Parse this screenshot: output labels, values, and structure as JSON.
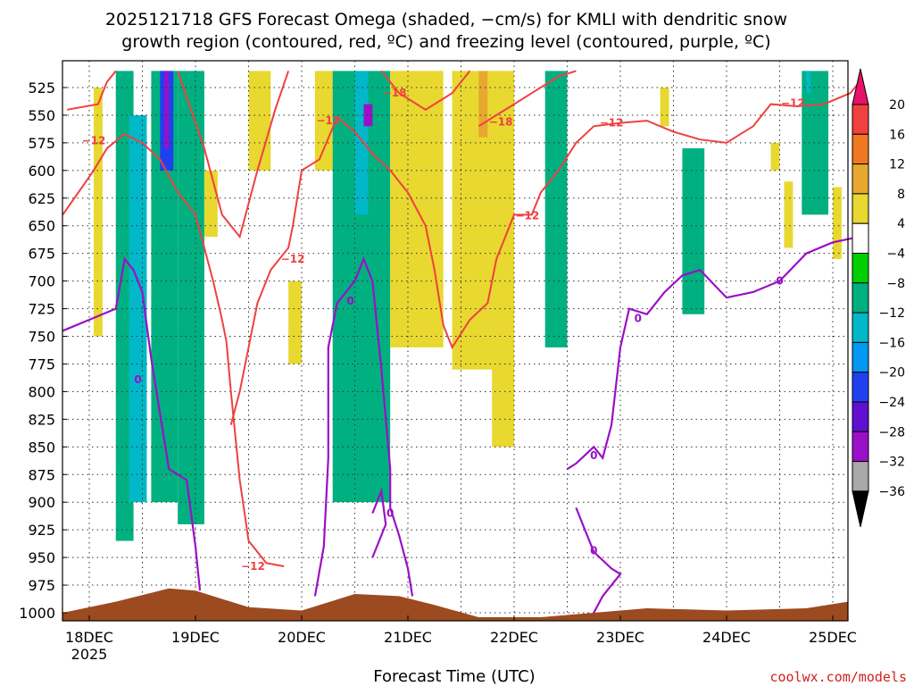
{
  "title_line1": "2025121718 GFS Forecast Omega (shaded, −cm/s) for KMLI with dendritic snow",
  "title_line2": "growth region (contoured, red, ºC) and freezing level (contoured, purple, ºC)",
  "xlabel": "Forecast Time (UTC)",
  "credit": "coolwx.com/models",
  "colors": {
    "terrain": "#9c4a20",
    "dgz_contour": "#f04040",
    "freezing_contour": "#9a10c8",
    "grid": "#333333"
  },
  "chart_data": {
    "type": "heatmap",
    "y_axis": {
      "unit": "hPa",
      "inverted": true,
      "range": [
        1005,
        510
      ],
      "ticks": [
        525,
        550,
        575,
        600,
        625,
        650,
        675,
        700,
        725,
        750,
        775,
        800,
        825,
        850,
        875,
        900,
        925,
        950,
        975,
        1000
      ]
    },
    "x_axis": {
      "range_hours_label": "Forecast Time (UTC)",
      "start": "2025-12-17T18Z",
      "end": "2025-12-25T06Z",
      "ticks": [
        {
          "time": "2025-12-18T00Z",
          "label": "18DEC",
          "sublabel": "2025"
        },
        {
          "time": "2025-12-19T00Z",
          "label": "19DEC"
        },
        {
          "time": "2025-12-20T00Z",
          "label": "20DEC"
        },
        {
          "time": "2025-12-21T00Z",
          "label": "21DEC"
        },
        {
          "time": "2025-12-22T00Z",
          "label": "22DEC"
        },
        {
          "time": "2025-12-23T00Z",
          "label": "23DEC"
        },
        {
          "time": "2025-12-24T00Z",
          "label": "24DEC"
        },
        {
          "time": "2025-12-25T00Z",
          "label": "25DEC"
        }
      ]
    },
    "grid": true,
    "colorbar": {
      "placement": "right",
      "labels": [
        "20",
        "16",
        "12",
        "8",
        "4",
        "−4",
        "−8",
        "−12",
        "−16",
        "−20",
        "−24",
        "−28",
        "−32",
        "−36"
      ],
      "colors_top_to_bottom": [
        "#e8106a",
        "#f04040",
        "#f07820",
        "#e8a830",
        "#e8d830",
        "#ffffff",
        "#00d000",
        "#00b080",
        "#00b8c8",
        "#0098f0",
        "#2040f0",
        "#6010d0",
        "#9a10c8",
        "#a8a8a8",
        "#000000"
      ]
    },
    "omega_shading": [
      {
        "t0": "18DEC 01Z",
        "t1": "18DEC 03Z",
        "p_top": 525,
        "p_bot": 750,
        "value": 6
      },
      {
        "t0": "18DEC 06Z",
        "t1": "18DEC 10Z",
        "p_top": 510,
        "p_bot": 935,
        "value": -8
      },
      {
        "t0": "18DEC 09Z",
        "t1": "18DEC 13Z",
        "p_top": 550,
        "p_bot": 900,
        "value": -12
      },
      {
        "t0": "18DEC 14Z",
        "t1": "18DEC 20Z",
        "p_top": 510,
        "p_bot": 900,
        "value": -8
      },
      {
        "t0": "18DEC 16Z",
        "t1": "18DEC 19Z",
        "p_top": 510,
        "p_bot": 600,
        "value": -20
      },
      {
        "t0": "18DEC 17Z",
        "t1": "18DEC 18Z",
        "p_top": 510,
        "p_bot": 580,
        "value": -28
      },
      {
        "t0": "18DEC 20Z",
        "t1": "19DEC 02Z",
        "p_top": 510,
        "p_bot": 920,
        "value": -8
      },
      {
        "t0": "19DEC 02Z",
        "t1": "19DEC 05Z",
        "p_top": 600,
        "p_bot": 660,
        "value": 6
      },
      {
        "t0": "19DEC 12Z",
        "t1": "19DEC 17Z",
        "p_top": 510,
        "p_bot": 600,
        "value": 6
      },
      {
        "t0": "19DEC 21Z",
        "t1": "20DEC 00Z",
        "p_top": 700,
        "p_bot": 775,
        "value": 6
      },
      {
        "t0": "20DEC 03Z",
        "t1": "20DEC 07Z",
        "p_top": 510,
        "p_bot": 600,
        "value": 6
      },
      {
        "t0": "20DEC 07Z",
        "t1": "20DEC 20Z",
        "p_top": 510,
        "p_bot": 900,
        "value": -8
      },
      {
        "t0": "20DEC 12Z",
        "t1": "20DEC 15Z",
        "p_top": 510,
        "p_bot": 640,
        "value": -12
      },
      {
        "t0": "20DEC 14Z",
        "t1": "20DEC 16Z",
        "p_top": 540,
        "p_bot": 560,
        "value": -28
      },
      {
        "t0": "20DEC 20Z",
        "t1": "21DEC 08Z",
        "p_top": 510,
        "p_bot": 760,
        "value": 6
      },
      {
        "t0": "21DEC 10Z",
        "t1": "21DEC 21Z",
        "p_top": 510,
        "p_bot": 780,
        "value": 6
      },
      {
        "t0": "21DEC 16Z",
        "t1": "21DEC 18Z",
        "p_top": 510,
        "p_bot": 570,
        "value": 10
      },
      {
        "t0": "21DEC 19Z",
        "t1": "22DEC 00Z",
        "p_top": 510,
        "p_bot": 850,
        "value": 6
      },
      {
        "t0": "22DEC 07Z",
        "t1": "22DEC 12Z",
        "p_top": 510,
        "p_bot": 760,
        "value": -8
      },
      {
        "t0": "23DEC 09Z",
        "t1": "23DEC 11Z",
        "p_top": 525,
        "p_bot": 560,
        "value": 6
      },
      {
        "t0": "23DEC 14Z",
        "t1": "23DEC 19Z",
        "p_top": 580,
        "p_bot": 730,
        "value": -8
      },
      {
        "t0": "24DEC 10Z",
        "t1": "24DEC 12Z",
        "p_top": 575,
        "p_bot": 600,
        "value": 6
      },
      {
        "t0": "24DEC 13Z",
        "t1": "24DEC 15Z",
        "p_top": 610,
        "p_bot": 670,
        "value": 6
      },
      {
        "t0": "24DEC 17Z",
        "t1": "24DEC 23Z",
        "p_top": 510,
        "p_bot": 640,
        "value": -8
      },
      {
        "t0": "24DEC 18Z",
        "t1": "24DEC 19Z",
        "p_top": 510,
        "p_bot": 530,
        "value": -12
      },
      {
        "t0": "25DEC 00Z",
        "t1": "25DEC 02Z",
        "p_top": 615,
        "p_bot": 680,
        "value": 6
      }
    ],
    "contour_labels": [
      {
        "text": "−12",
        "time": "18DEC 01Z",
        "p": 573,
        "kind": "dgz"
      },
      {
        "text": "−12",
        "time": "19DEC 22Z",
        "p": 680,
        "kind": "dgz"
      },
      {
        "text": "−12",
        "time": "19DEC 13Z",
        "p": 958,
        "kind": "dgz"
      },
      {
        "text": "−12",
        "time": "20DEC 06Z",
        "p": 555,
        "kind": "dgz"
      },
      {
        "text": "−18",
        "time": "20DEC 21Z",
        "p": 530,
        "kind": "dgz"
      },
      {
        "text": "−18",
        "time": "21DEC 21Z",
        "p": 556,
        "kind": "dgz"
      },
      {
        "text": "−12",
        "time": "22DEC 03Z",
        "p": 641,
        "kind": "dgz"
      },
      {
        "text": "−12",
        "time": "22DEC 22Z",
        "p": 557,
        "kind": "dgz"
      },
      {
        "text": "−12",
        "time": "24DEC 15Z",
        "p": 539,
        "kind": "dgz"
      },
      {
        "text": "0",
        "time": "18DEC 11Z",
        "p": 789,
        "kind": "freezing"
      },
      {
        "text": "0",
        "time": "20DEC 11Z",
        "p": 718,
        "kind": "freezing"
      },
      {
        "text": "0",
        "time": "20DEC 20Z",
        "p": 910,
        "kind": "freezing"
      },
      {
        "text": "0",
        "time": "22DEC 18Z",
        "p": 858,
        "kind": "freezing"
      },
      {
        "text": "0",
        "time": "22DEC 18Z",
        "p": 944,
        "kind": "freezing"
      },
      {
        "text": "0",
        "time": "23DEC 04Z",
        "p": 734,
        "kind": "freezing"
      },
      {
        "text": "0",
        "time": "24DEC 12Z",
        "p": 700,
        "kind": "freezing"
      }
    ]
  }
}
